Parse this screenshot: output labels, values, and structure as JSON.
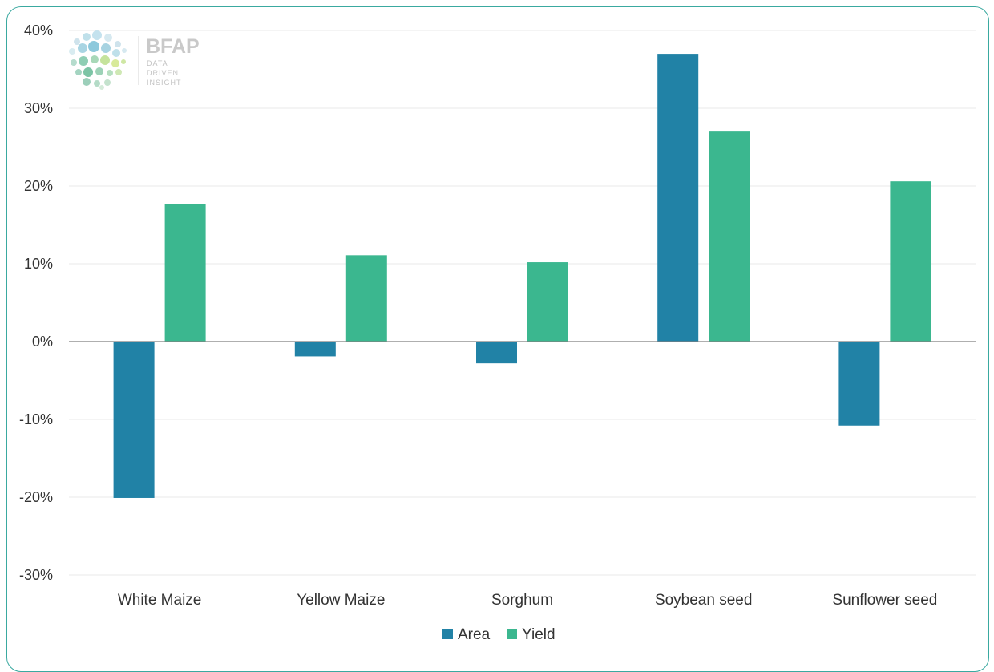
{
  "logo": {
    "name": "BFAP",
    "tagline": [
      "DATA",
      "DRIVEN",
      "INSIGHT"
    ]
  },
  "chart_data": {
    "type": "bar",
    "categories": [
      "White Maize",
      "Yellow Maize",
      "Sorghum",
      "Soybean seed",
      "Sunflower seed"
    ],
    "series": [
      {
        "name": "Area",
        "color": "#2182a6",
        "values": [
          -20.1,
          -1.9,
          -2.8,
          37.0,
          -10.8
        ]
      },
      {
        "name": "Yield",
        "color": "#3bb78f",
        "values": [
          17.7,
          11.1,
          10.2,
          27.1,
          20.6
        ]
      }
    ],
    "y_ticks": [
      40,
      30,
      20,
      10,
      0,
      -10,
      -20,
      -30
    ],
    "y_tick_labels": [
      "40%",
      "30%",
      "20%",
      "10%",
      "0%",
      "-10%",
      "-20%",
      "-30%"
    ],
    "ylim": [
      -30,
      40
    ],
    "grid": true,
    "legend": "bottom-center",
    "title": "",
    "xlabel": "",
    "ylabel": ""
  }
}
